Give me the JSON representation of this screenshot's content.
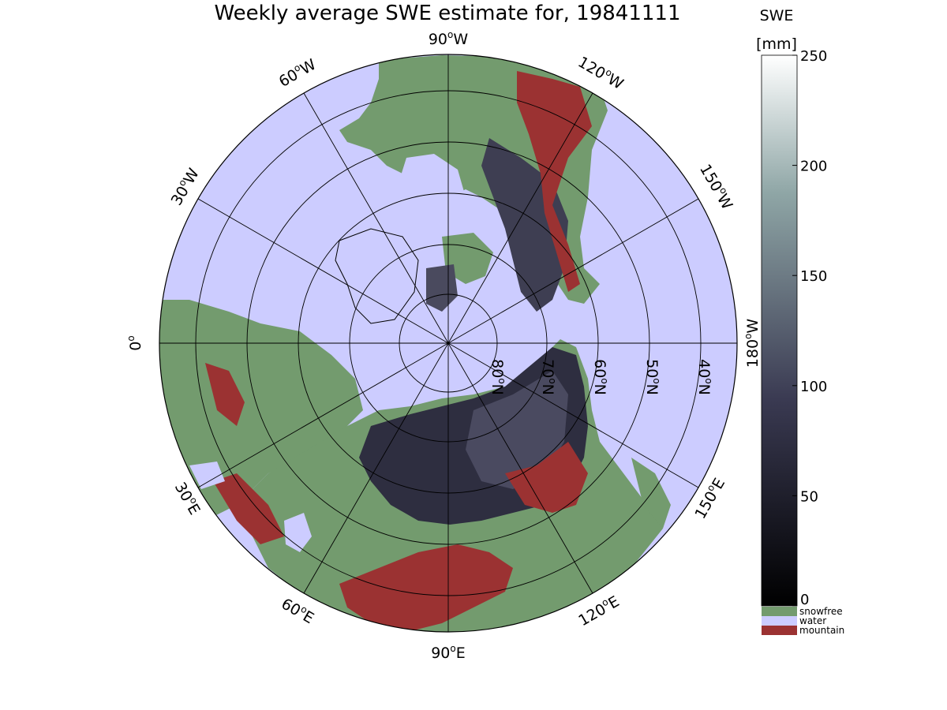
{
  "title": "Weekly average SWE estimate for, 19841111",
  "map": {
    "projection": "north-polar-stereographic",
    "meridian_labels": {
      "deg_90W": "90",
      "deg_60W": "60",
      "deg_30W": "30",
      "deg_120W": "120",
      "deg_150W": "150",
      "deg_180W": "180",
      "deg_0": "0",
      "deg_30E": "30",
      "deg_60E": "60",
      "deg_90E": "90",
      "deg_120E": "120",
      "deg_150E": "150"
    },
    "meridian_suffix": {
      "W": "W",
      "E": "E",
      "deg_sup": "o"
    },
    "parallel_labels": {
      "n80": "80",
      "n70": "70",
      "n60": "60",
      "n50": "50",
      "n40": "40",
      "suffix_N": "N"
    }
  },
  "colorbar": {
    "label_line1": "SWE",
    "label_line2": "[mm]",
    "min": 0,
    "max": 250,
    "ticks": [
      "0",
      "50",
      "100",
      "150",
      "200",
      "250"
    ],
    "colormap": "bone",
    "legend": [
      {
        "label": "snowfree",
        "color": "#739b6e"
      },
      {
        "label": "water",
        "color": "#ccccff"
      },
      {
        "label": "mountain",
        "color": "#9b3232"
      }
    ]
  },
  "colors": {
    "water": "#ccccff",
    "land": "#739b6e",
    "mountain": "#9b3232",
    "snow_low": "#2a2a3a",
    "snow_mid": "#4a4a5e",
    "grid": "#000000"
  }
}
